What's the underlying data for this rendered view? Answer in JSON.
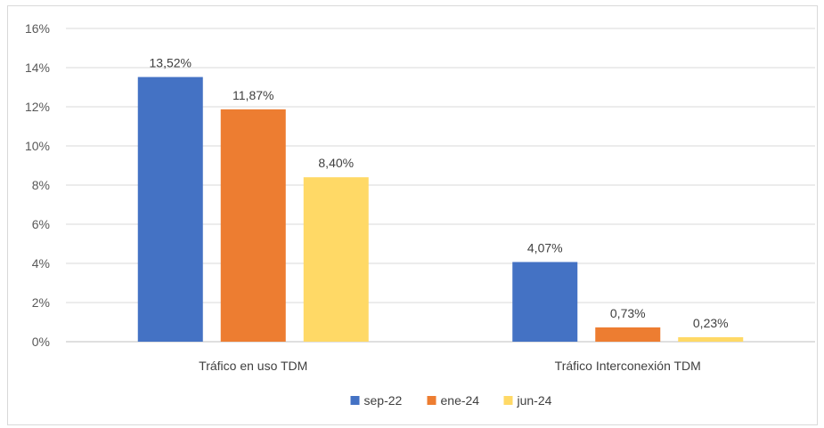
{
  "chart_data": {
    "type": "bar",
    "categories": [
      "Tráfico en uso TDM",
      "Tráfico Interconexión TDM"
    ],
    "series": [
      {
        "name": "sep-22",
        "values": [
          13.52,
          4.07
        ],
        "labels": [
          "13,52%",
          "4,07%"
        ],
        "color": "#4472C4"
      },
      {
        "name": "ene-24",
        "values": [
          11.87,
          0.73
        ],
        "labels": [
          "11,87%",
          "0,73%"
        ],
        "color": "#ED7D31"
      },
      {
        "name": "jun-24",
        "values": [
          8.4,
          0.23
        ],
        "labels": [
          "8,40%",
          "0,23%"
        ],
        "color": "#FFD966"
      }
    ],
    "y_ticks": [
      "0%",
      "2%",
      "4%",
      "6%",
      "8%",
      "10%",
      "12%",
      "14%",
      "16%"
    ],
    "ylim": [
      0,
      16
    ],
    "grid": true,
    "legend_position": "bottom"
  }
}
